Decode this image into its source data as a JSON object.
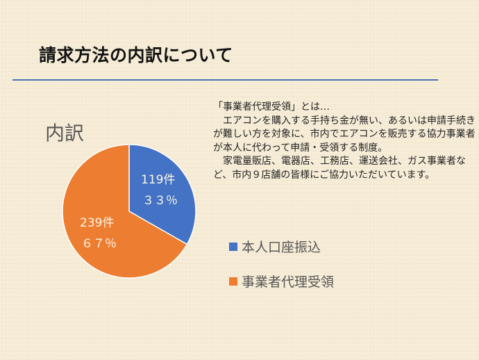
{
  "slide": {
    "title": "請求方法の内訳について",
    "rule_color": "#4a72b0"
  },
  "chart_data": {
    "type": "pie",
    "title": "内訳",
    "categories": [
      "本人口座振込",
      "事業者代理受領"
    ],
    "values": [
      119,
      239
    ],
    "percentages": [
      33,
      67
    ],
    "colors": [
      "#4472c4",
      "#ed7d31"
    ],
    "data_labels": [
      {
        "count": "119件",
        "percent": "３３％"
      },
      {
        "count": "239件",
        "percent": "６７％"
      }
    ],
    "legend_position": "right"
  },
  "description": {
    "heading": "「事業者代理受領」とは…",
    "para1": "　エアコンを購入する手持ち金が無い、あるいは申請手続きが難しい方を対象に、市内でエアコンを販売する協力事業者が本人に代わって申請・受領する制度。",
    "para2": "　家電量販店、電器店、工務店、運送会社、ガス事業者など、市内９店舗の皆様にご協力いただいています。"
  },
  "legend": [
    {
      "label": "本人口座振込",
      "color": "#4472c4"
    },
    {
      "label": "事業者代理受領",
      "color": "#ed7d31"
    }
  ]
}
